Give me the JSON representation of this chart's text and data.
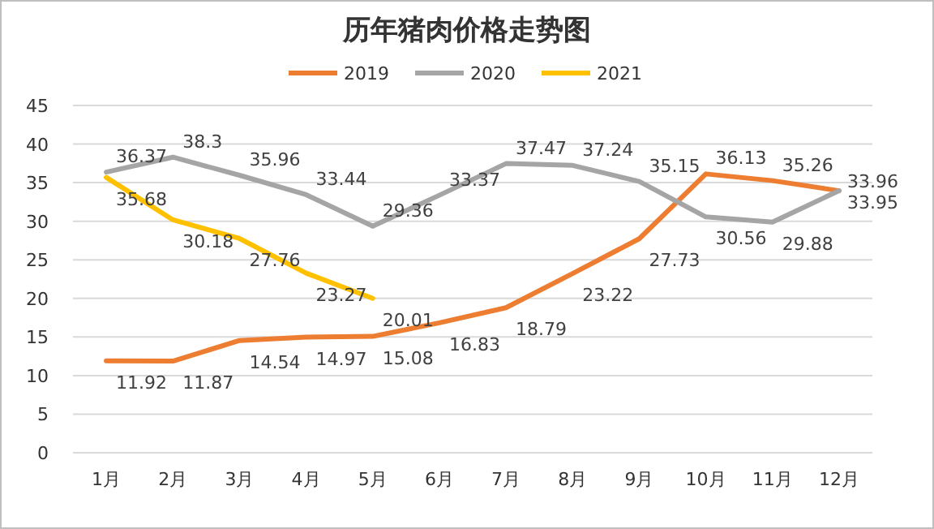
{
  "chart_data": {
    "type": "line",
    "title": "历年猪肉价格走势图",
    "categories": [
      "1月",
      "2月",
      "3月",
      "4月",
      "5月",
      "6月",
      "7月",
      "8月",
      "9月",
      "10月",
      "11月",
      "12月"
    ],
    "series": [
      {
        "name": "2019",
        "color": "#ed7d31",
        "values": [
          11.92,
          11.87,
          14.54,
          14.97,
          15.08,
          16.83,
          18.79,
          23.22,
          27.73,
          36.13,
          35.26,
          33.95
        ]
      },
      {
        "name": "2020",
        "color": "#a5a5a5",
        "values": [
          36.37,
          38.3,
          35.96,
          33.44,
          29.36,
          33.37,
          37.47,
          37.24,
          35.15,
          30.56,
          29.88,
          33.96
        ]
      },
      {
        "name": "2021",
        "color": "#ffc000",
        "values": [
          35.68,
          30.18,
          27.76,
          23.27,
          20.01,
          null,
          null,
          null,
          null,
          null,
          null,
          null
        ]
      }
    ],
    "ylim": [
      0,
      45
    ],
    "yticks": [
      0,
      5,
      10,
      15,
      20,
      25,
      30,
      35,
      40,
      45
    ],
    "grid": "y",
    "legend": "top",
    "marker": "none",
    "line_style": "solid",
    "data_labels": true
  }
}
